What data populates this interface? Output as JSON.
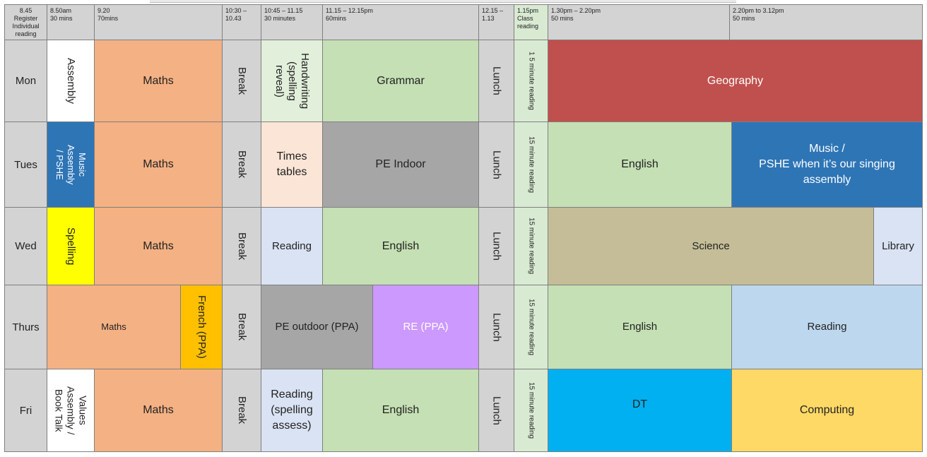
{
  "colors": {
    "header_grey": "#d3d3d3",
    "maths": "#f4b183",
    "english_green": "#c5e0b4",
    "reading_blue": "#dae3f3",
    "geography": "#c0504d",
    "music_blue": "#2e75b6",
    "pe_grey": "#a6a6a6",
    "times_tables": "#fbe5d6",
    "spelling_yellow": "#ffff00",
    "science": "#c4bd97",
    "french": "#ffc000",
    "pe_outdoor": "#a6a6a6",
    "re_purple": "#cc99ff",
    "light_blue": "#bdd7ee",
    "dt_cyan": "#00b0f0",
    "computing": "#ffd966"
  },
  "headers": {
    "c0": "8.45\nRegister\nIndividual\nreading",
    "c1": "8.50am\n30 mins",
    "c2": "9.20\n70mins",
    "c3": "10:30 –\n10.43",
    "c4": "10:45 – 11.15\n30 minutes",
    "c5": "11.15 – 12.15pm\n60mins",
    "c6": "12.15 –\n1.13",
    "c7": "1.15pm\nClass\nreading",
    "c8": "1.30pm – 2.20pm\n50 mins",
    "c9": "2.20pm to 3.12pm\n50 mins"
  },
  "days": {
    "mon": "Mon",
    "tues": "Tues",
    "wed": "Wed",
    "thurs": "Thurs",
    "fri": "Fri"
  },
  "mon": {
    "assembly": "Assembly",
    "maths": "Maths",
    "break": "Break",
    "handwriting": "Handwriting\n(spelling\nreveal)",
    "grammar": "Grammar",
    "lunch": "Lunch",
    "reading": "1 5 minute reading",
    "geography": "Geography"
  },
  "tues": {
    "assembly": "Music\nAssembly\n/ PSHE",
    "maths": "Maths",
    "break": "Break",
    "times": "Times\ntables",
    "pe": "PE Indoor",
    "lunch": "Lunch",
    "reading": "15 minute reading",
    "english": "English",
    "music": "Music /\nPSHE when it’s our singing\nassembly"
  },
  "wed": {
    "spelling": "Spelling",
    "maths": "Maths",
    "break": "Break",
    "reading_a": "Reading",
    "english": "English",
    "lunch": "Lunch",
    "reading": "15 minute reading",
    "science": "Science",
    "library": "Library"
  },
  "thurs": {
    "maths": "Maths",
    "french": "French (PPA)",
    "break": "Break",
    "pe": "PE outdoor (PPA)",
    "re": "RE (PPA)",
    "lunch": "Lunch",
    "reading": "15 minute reading",
    "english": "English",
    "reading_b": "Reading"
  },
  "fri": {
    "assembly": "Values\nAssembly /\nBook Talk",
    "maths": "Maths",
    "break": "Break",
    "reading_a": "Reading\n(spelling\nassess)",
    "english": "English",
    "lunch": "Lunch",
    "reading": "15 minute reading",
    "dt": "DT",
    "computing": "Computing"
  }
}
